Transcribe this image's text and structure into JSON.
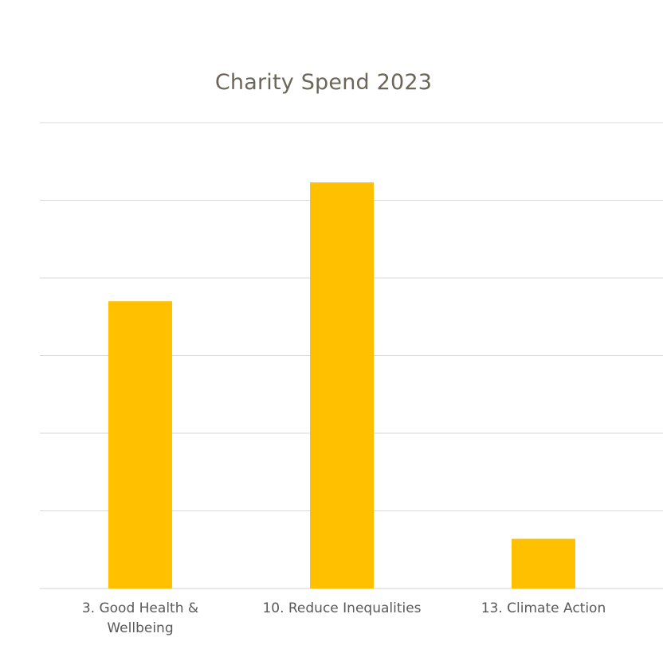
{
  "chart_data": {
    "type": "bar",
    "title": "Charity Spend 2023",
    "categories": [
      "3. Good Health & Wellbeing",
      "10. Reduce Inequalities",
      "13. Climate Action"
    ],
    "category_lines": [
      [
        "3. Good Health &",
        "Wellbeing"
      ],
      [
        "10. Reduce Inequalities"
      ],
      [
        "13. Climate Action"
      ]
    ],
    "values": [
      3.7,
      5.23,
      0.64
    ],
    "ylim": [
      0,
      6
    ],
    "y_gridlines": [
      0,
      1,
      2,
      3,
      4,
      5,
      6
    ],
    "grid": true,
    "legend": "none",
    "bar_color": "#ffc000"
  }
}
